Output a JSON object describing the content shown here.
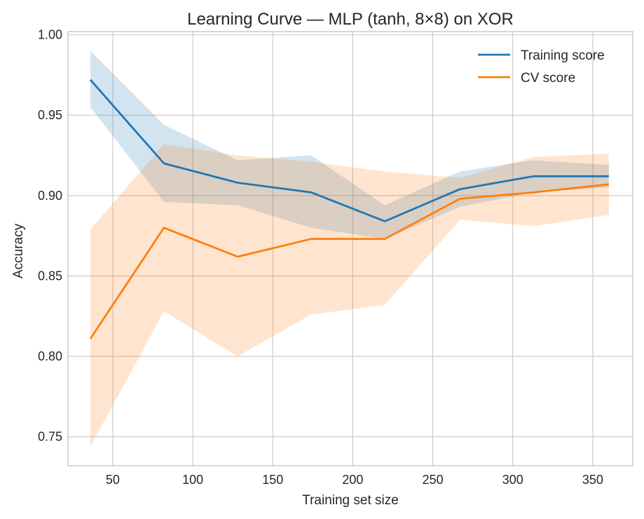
{
  "chart_data": {
    "type": "line",
    "title": "Learning Curve — MLP (tanh, 8×8) on XOR",
    "xlabel": "Training set size",
    "ylabel": "Accuracy",
    "xlim": [
      22,
      375
    ],
    "ylim": [
      0.732,
      1.002
    ],
    "xticks": [
      50,
      100,
      150,
      200,
      250,
      300,
      350
    ],
    "yticks": [
      0.75,
      0.8,
      0.85,
      0.9,
      0.95,
      1.0
    ],
    "xtick_labels": [
      "50",
      "100",
      "150",
      "200",
      "250",
      "300",
      "350"
    ],
    "ytick_labels": [
      "0.75",
      "0.80",
      "0.85",
      "0.90",
      "0.95",
      "1.00"
    ],
    "grid": true,
    "legend_position": "top-right",
    "x": [
      36,
      82,
      128,
      174,
      220,
      267,
      313,
      360
    ],
    "series": [
      {
        "name": "Training score",
        "color": "#1f77b4",
        "values": [
          0.972,
          0.92,
          0.908,
          0.902,
          0.884,
          0.904,
          0.912,
          0.912
        ],
        "lower": [
          0.955,
          0.896,
          0.894,
          0.88,
          0.873,
          0.893,
          0.902,
          0.905
        ],
        "upper": [
          0.99,
          0.944,
          0.922,
          0.925,
          0.894,
          0.915,
          0.922,
          0.919
        ]
      },
      {
        "name": "CV score",
        "color": "#ff7f0e",
        "values": [
          0.811,
          0.88,
          0.862,
          0.873,
          0.873,
          0.898,
          0.902,
          0.907
        ],
        "lower": [
          0.744,
          0.828,
          0.8,
          0.826,
          0.832,
          0.885,
          0.881,
          0.888
        ],
        "upper": [
          0.879,
          0.932,
          0.925,
          0.921,
          0.915,
          0.911,
          0.924,
          0.926
        ]
      }
    ]
  }
}
